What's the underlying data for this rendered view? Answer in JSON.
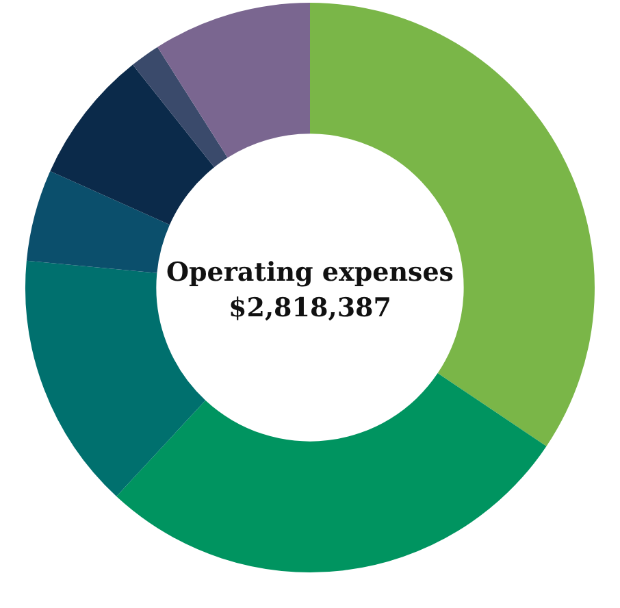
{
  "chart_data": {
    "type": "donut",
    "title": "Operating expenses",
    "subtitle": "$2,818,387",
    "categories": [
      null,
      null,
      null,
      null,
      null,
      null,
      null
    ],
    "values": [
      34.4,
      27.5,
      14.6,
      5.2,
      7.6,
      1.7,
      9.0
    ],
    "colors": [
      "#7ab648",
      "#009460",
      "#00706e",
      "#0b4f6c",
      "#0b2a4a",
      "#3a4a6b",
      "#7a6690"
    ],
    "legend": false
  }
}
